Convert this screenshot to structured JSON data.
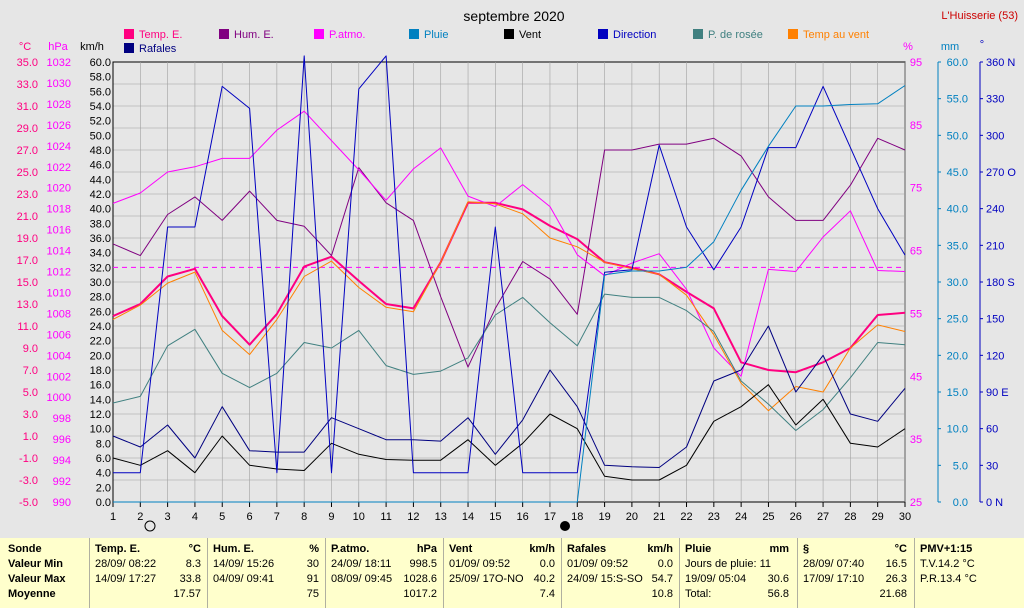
{
  "colors": {
    "temp": "#ff0080",
    "hum": "#800080",
    "patmo": "#ff00ff",
    "pluie": "#0080c0",
    "vent": "#000000",
    "direction": "#0000c0",
    "rosee": "#408080",
    "tempvent": "#ff8000",
    "rafales": "#000080"
  },
  "chart_data": {
    "type": "line",
    "title": "septembre 2020",
    "station": "L'Huisserie (53)",
    "x": [
      1,
      2,
      3,
      4,
      5,
      6,
      7,
      8,
      9,
      10,
      11,
      12,
      13,
      14,
      15,
      16,
      17,
      18,
      19,
      20,
      21,
      22,
      23,
      24,
      25,
      26,
      27,
      28,
      29,
      30
    ],
    "grid": true,
    "legend": [
      {
        "label": "Temp. E.",
        "color": "#ff0080"
      },
      {
        "label": "Hum. E.",
        "color": "#800080"
      },
      {
        "label": "P.atmo.",
        "color": "#ff00ff"
      },
      {
        "label": "Pluie",
        "color": "#0080c0"
      },
      {
        "label": "Vent",
        "color": "#000000"
      },
      {
        "label": "Direction",
        "color": "#0000c0"
      },
      {
        "label": "P. de rosée",
        "color": "#408080"
      },
      {
        "label": "Temp au vent",
        "color": "#ff8000"
      },
      {
        "label": "Rafales",
        "color": "#000080"
      }
    ],
    "axes": {
      "temp": {
        "unit": "°C",
        "ylim": [
          -5,
          35
        ],
        "ticks": [
          "35.0",
          "33.0",
          "31.0",
          "29.0",
          "27.0",
          "25.0",
          "23.0",
          "21.0",
          "19.0",
          "17.0",
          "15.0",
          "13.0",
          "11.0",
          "9.0",
          "7.0",
          "5.0",
          "3.0",
          "1.0",
          "-1.0",
          "-3.0",
          "-5.0"
        ]
      },
      "press": {
        "unit": "hPa",
        "ylim": [
          990,
          1032
        ],
        "ticks": [
          "1032",
          "1030",
          "1028",
          "1026",
          "1024",
          "1022",
          "1020",
          "1018",
          "1016",
          "1014",
          "1012",
          "1010",
          "1008",
          "1006",
          "1004",
          "1002",
          "1000",
          "998",
          "996",
          "994",
          "992",
          "990"
        ]
      },
      "wind": {
        "unit": "km/h",
        "ylim": [
          0,
          60
        ],
        "ticks": [
          "60.0",
          "58.0",
          "56.0",
          "54.0",
          "52.0",
          "50.0",
          "48.0",
          "46.0",
          "44.0",
          "42.0",
          "40.0",
          "38.0",
          "36.0",
          "34.0",
          "32.0",
          "30.0",
          "28.0",
          "26.0",
          "24.0",
          "22.0",
          "20.0",
          "18.0",
          "16.0",
          "14.0",
          "12.0",
          "10.0",
          "8.0",
          "6.0",
          "4.0",
          "2.0",
          "0.0"
        ]
      },
      "hum": {
        "unit": "%",
        "ylim": [
          25,
          100
        ],
        "ticks": [
          "95",
          "85",
          "75",
          "65",
          "55",
          "45",
          "35",
          "25"
        ]
      },
      "rain": {
        "unit": "mm",
        "ylim": [
          0,
          60
        ],
        "ticks": [
          "60.0",
          "55.0",
          "50.0",
          "45.0",
          "40.0",
          "35.0",
          "30.0",
          "25.0",
          "20.0",
          "15.0",
          "10.0",
          "5.0",
          "0.0"
        ]
      },
      "dir": {
        "unit": "°",
        "ylim": [
          0,
          360
        ],
        "ticks": [
          "360 N",
          "330",
          "300",
          "270 O",
          "240",
          "210",
          "180 S",
          "150",
          "120",
          "90  E",
          "60",
          "30",
          "0  N"
        ]
      }
    },
    "series": [
      {
        "name": "Temp. E.",
        "axis": "temp",
        "color": "#ff0080",
        "width": 2,
        "values": [
          11.9,
          13,
          15.5,
          16.2,
          11.9,
          9.3,
          12.1,
          16.4,
          17.3,
          15.1,
          13,
          12.6,
          16.8,
          22.2,
          22.2,
          21.6,
          20.1,
          18.9,
          16.8,
          16.3,
          15.7,
          14.1,
          12.6,
          7.7,
          7,
          6.8,
          7.7,
          9,
          12,
          12.2
        ]
      },
      {
        "name": "Hum. E.",
        "axis": "hum",
        "color": "#800080",
        "width": 1,
        "values": [
          69,
          67,
          74,
          77,
          73,
          78,
          73,
          72,
          67,
          82,
          76,
          73,
          60,
          48,
          58,
          66,
          63,
          57,
          85,
          85,
          86,
          86,
          87,
          84,
          77,
          73,
          73,
          79,
          87,
          85
        ]
      },
      {
        "name": "P.atmo.",
        "axis": "press",
        "color": "#ff00ff",
        "width": 1,
        "values": [
          1018.5,
          1019.5,
          1021.5,
          1022,
          1022.8,
          1022.8,
          1025.5,
          1027.3,
          1024.5,
          1021.7,
          1018.8,
          1021.8,
          1023.8,
          1019.2,
          1018.2,
          1020.3,
          1018.2,
          1013.6,
          1011.6,
          1012.8,
          1013.7,
          1010.3,
          1004.7,
          1002,
          1012.2,
          1012,
          1015.3,
          1017.8,
          1012.1,
          1012
        ]
      },
      {
        "name": "Temp au vent",
        "axis": "temp",
        "color": "#ff8000",
        "width": 1,
        "values": [
          11.6,
          12.9,
          14.9,
          15.9,
          10.6,
          8.4,
          11.6,
          15.5,
          16.9,
          14.5,
          12.7,
          12.3,
          16.8,
          22.3,
          22.1,
          21.2,
          19,
          18.2,
          16.8,
          16.2,
          15.7,
          13.8,
          10.2,
          5.8,
          3.3,
          5.5,
          5,
          9,
          11.1,
          10.5
        ]
      },
      {
        "name": "P. de rosée",
        "axis": "temp",
        "color": "#408080",
        "width": 1,
        "values": [
          4,
          4.6,
          9.2,
          10.7,
          6.7,
          5.4,
          6.7,
          9.5,
          9,
          10.6,
          7.4,
          6.6,
          6.9,
          8.1,
          12,
          13.6,
          11.3,
          9.2,
          13.9,
          13.6,
          13.6,
          12.4,
          10.5,
          6,
          3.9,
          1.5,
          3.4,
          6.3,
          9.5,
          9.3
        ]
      },
      {
        "name": "Vent",
        "axis": "wind",
        "color": "#000000",
        "width": 1,
        "values": [
          6,
          5,
          7,
          4,
          9,
          5,
          4.5,
          4.3,
          8,
          6.5,
          5.8,
          5.7,
          5.7,
          8.5,
          5,
          8,
          12,
          10,
          3.5,
          3,
          3,
          5,
          11,
          13,
          16,
          10.5,
          14,
          8,
          7.5,
          10
        ]
      },
      {
        "name": "Rafales",
        "axis": "wind",
        "color": "#000080",
        "width": 1,
        "values": [
          9,
          7.5,
          10.5,
          6,
          13,
          7,
          6.8,
          6.8,
          11.5,
          10,
          8.5,
          8.5,
          8.3,
          11.5,
          6.5,
          11.2,
          18,
          13,
          5,
          4.8,
          4.7,
          7.5,
          16.5,
          18,
          24,
          15,
          20,
          12,
          11,
          15.5
        ]
      },
      {
        "name": "Direction",
        "axis": "dir",
        "color": "#0000c0",
        "width": 1,
        "values": [
          24,
          24,
          225,
          225,
          340,
          322,
          24,
          365,
          24,
          338,
          365,
          24,
          24,
          24,
          225,
          24,
          24,
          24,
          188,
          190,
          292,
          225,
          190,
          225,
          290,
          290,
          340,
          290,
          240,
          202
        ]
      },
      {
        "name": "Pluie",
        "axis": "rain",
        "color": "#0080c0",
        "width": 1,
        "values": [
          0,
          0,
          0,
          0,
          0,
          0,
          0,
          0,
          0,
          0,
          0,
          0,
          0,
          0,
          0,
          0,
          0,
          0,
          31,
          31.5,
          31.5,
          32,
          35.5,
          42.5,
          48.5,
          54,
          54,
          54.2,
          54.3,
          56.8
        ]
      }
    ],
    "dashed_refs": [
      {
        "axis": "hum",
        "value": 65
      }
    ]
  },
  "stats": {
    "labels": {
      "title": "Sonde",
      "min": "Valeur Min",
      "max": "Valeur Max",
      "avg": "Moyenne"
    },
    "groups": [
      {
        "name": "Temp. E.",
        "unit": "°C",
        "min": [
          "28/09/ 08:22",
          "8.3"
        ],
        "max": [
          "14/09/ 17:27",
          "33.8"
        ],
        "avg": "17.57"
      },
      {
        "name": "Hum. E.",
        "unit": "%",
        "min": [
          "14/09/ 15:26",
          "30"
        ],
        "max": [
          "04/09/ 09:41",
          "91"
        ],
        "avg": "75"
      },
      {
        "name": "P.atmo.",
        "unit": "hPa",
        "min": [
          "24/09/ 18:11",
          "998.5"
        ],
        "max": [
          "08/09/ 09:45",
          "1028.6"
        ],
        "avg": "1017.2"
      },
      {
        "name": "Vent",
        "unit": "km/h",
        "min": [
          "01/09/ 09:52",
          "0.0"
        ],
        "max": [
          "25/09/ 17O-NO",
          "40.2"
        ],
        "avg": "7.4"
      },
      {
        "name": "Rafales",
        "unit": "km/h",
        "min": [
          "01/09/ 09:52",
          "0.0"
        ],
        "max": [
          "24/09/ 15:S-SO",
          "54.7"
        ],
        "avg": "10.8"
      }
    ],
    "pluie": {
      "name": "Pluie",
      "unit": "mm",
      "row1": [
        "Jours de pluie: 11",
        ""
      ],
      "row2": [
        "19/09/ 05:04",
        "30.6"
      ],
      "row3": [
        "Total:",
        "56.8"
      ]
    },
    "rosee": {
      "name": "§",
      "unit": "°C",
      "min": [
        "28/09/ 07:40",
        "16.5"
      ],
      "max": [
        "17/09/ 17:10",
        "26.3"
      ],
      "avg": "21.68"
    },
    "pmv": {
      "name": "PMV+1:15",
      "line1": "T.V.14.2 °C",
      "line2": "P.R.13.4 °C"
    }
  }
}
